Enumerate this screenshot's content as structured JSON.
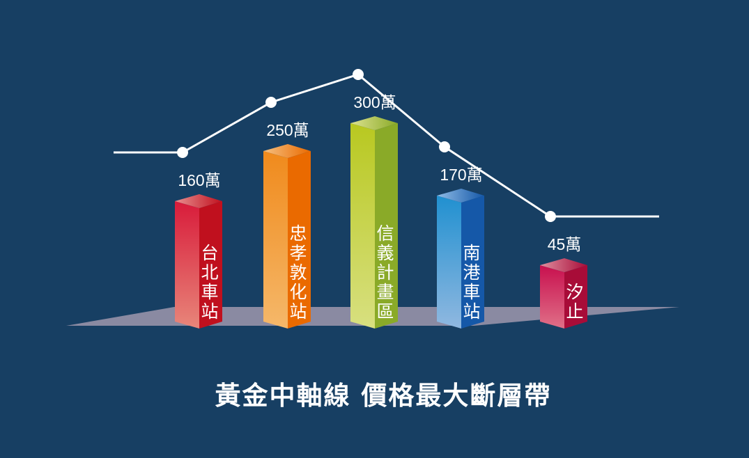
{
  "chart_data": {
    "type": "bar",
    "title": "黃金中軸線 價格最大斷層帶",
    "categories": [
      "台北車站",
      "忠孝敦化站",
      "信義計畫區",
      "南港車站",
      "汐止"
    ],
    "values": [
      160,
      250,
      300,
      170,
      45
    ],
    "value_labels": [
      "160萬",
      "250萬",
      "300萬",
      "170萬",
      "45萬"
    ],
    "unit": "萬",
    "colors": [
      "#d81b3a",
      "#f08a1c",
      "#b8c820",
      "#2090d0",
      "#c8104e"
    ],
    "trend_line": true,
    "background": "#173f63"
  }
}
